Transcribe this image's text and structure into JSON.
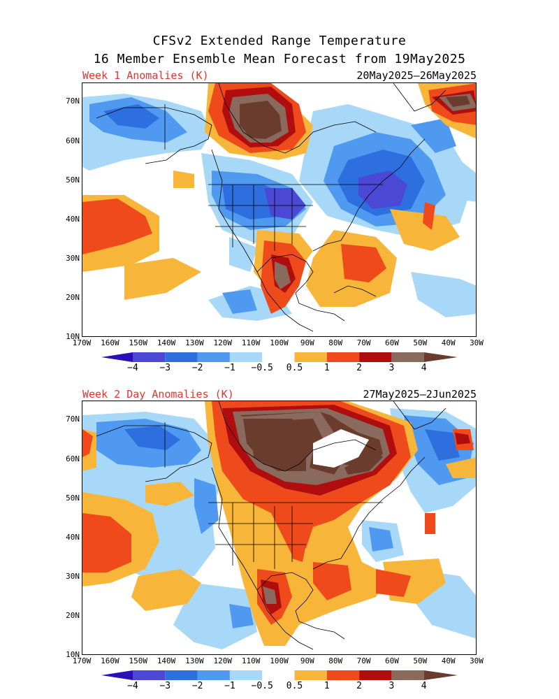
{
  "title_line1": "CFSv2 Extended Range Temperature",
  "title_line2": "16 Member Ensemble Mean Forecast from 19May2025",
  "panels": [
    {
      "label": "Week 1 Anomalies (K)",
      "dates": "20May2025–26May2025"
    },
    {
      "label": "Week 2 Day Anomalies (K)",
      "dates": "27May2025–2Jun2025"
    }
  ],
  "lat_ticks": [
    "70N",
    "60N",
    "50N",
    "40N",
    "30N",
    "20N",
    "10N"
  ],
  "lon_ticks": [
    "170W",
    "160W",
    "150W",
    "140W",
    "130W",
    "120W",
    "110W",
    "100W",
    "90W",
    "80W",
    "70W",
    "60W",
    "50W",
    "40W",
    "30W"
  ],
  "colorbar": {
    "labels": [
      "−4",
      "−3",
      "−2",
      "−1",
      "−0.5",
      "0.5",
      "1",
      "2",
      "3",
      "4"
    ],
    "colors": [
      "#2b10b8",
      "#4a48d4",
      "#2e6fe0",
      "#4f9af0",
      "#a8d8f8",
      "#ffffff",
      "#f7b63a",
      "#ef4a1c",
      "#b00e0e",
      "#8a6a5c",
      "#6a3c2e"
    ]
  }
}
